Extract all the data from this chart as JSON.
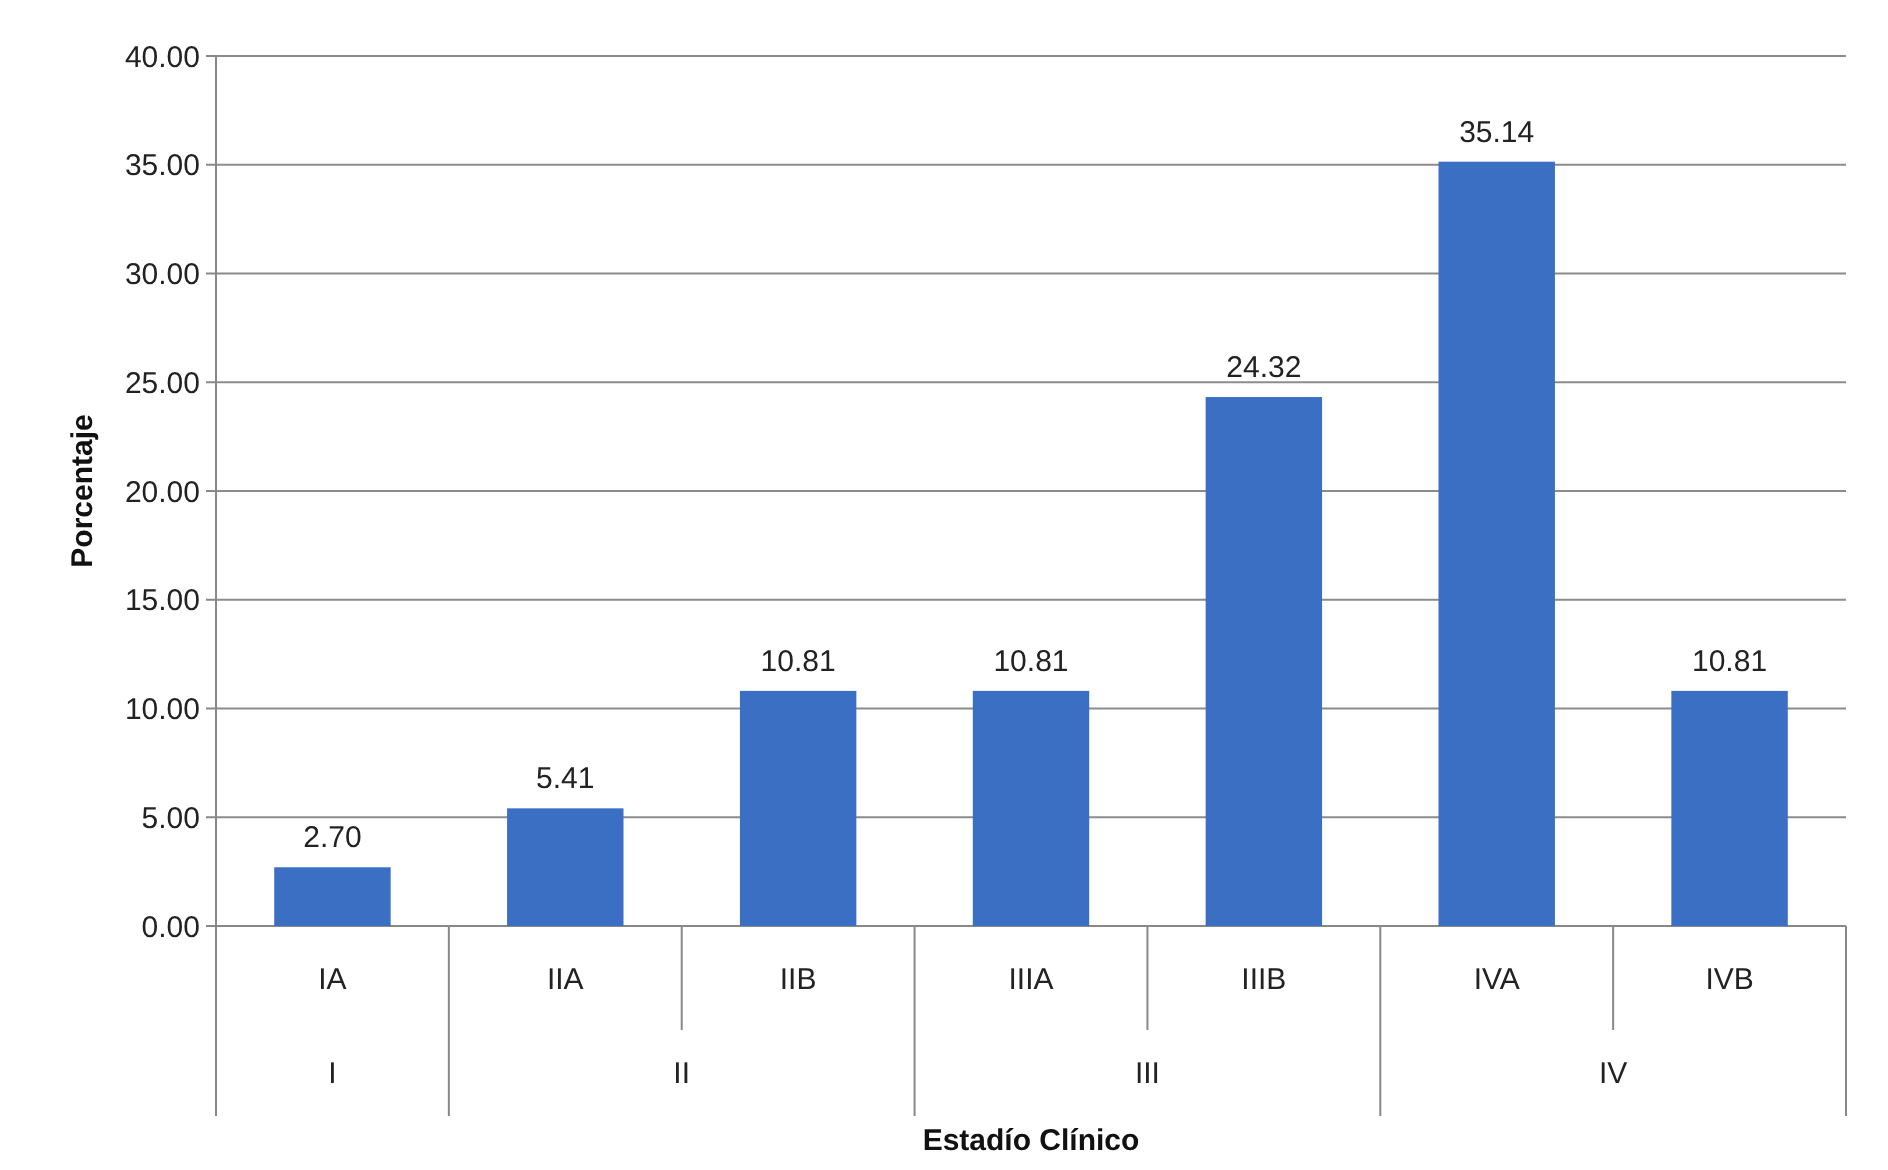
{
  "chart_data": {
    "type": "bar",
    "xlabel": "Estadío Clínico",
    "ylabel": "Porcentaje",
    "categories": [
      "IA",
      "IIA",
      "IIB",
      "IIIA",
      "IIIB",
      "IVA",
      "IVB"
    ],
    "values": [
      2.7,
      5.41,
      10.81,
      10.81,
      24.32,
      35.14,
      10.81
    ],
    "color": "#3a6fc4",
    "ylim": [
      0,
      40
    ],
    "yticks": [
      {
        "value": 0,
        "label": "0.00"
      },
      {
        "value": 5,
        "label": "5.00"
      },
      {
        "value": 10,
        "label": "10.00"
      },
      {
        "value": 15,
        "label": "15.00"
      },
      {
        "value": 20,
        "label": "20.00"
      },
      {
        "value": 25,
        "label": "25.00"
      },
      {
        "value": 30,
        "label": "30.00"
      },
      {
        "value": 35,
        "label": "35.00"
      },
      {
        "value": 40,
        "label": "40.00"
      }
    ],
    "grid": "y",
    "value_labels": [
      "2.70",
      "5.41",
      "10.81",
      "10.81",
      "24.32",
      "35.14",
      "10.81"
    ],
    "annotations": [
      "I",
      "II",
      "III",
      "IV"
    ]
  }
}
